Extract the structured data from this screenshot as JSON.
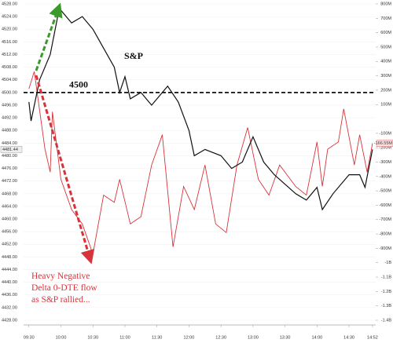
{
  "chart_data": {
    "type": "line",
    "xlim": [
      565,
      895
    ],
    "xticks": [
      {
        "value": 570,
        "label": "09:30"
      },
      {
        "value": 600,
        "label": "10:00"
      },
      {
        "value": 630,
        "label": "10:30"
      },
      {
        "value": 660,
        "label": "11:00"
      },
      {
        "value": 690,
        "label": "11:30"
      },
      {
        "value": 720,
        "label": "12:00"
      },
      {
        "value": 750,
        "label": "12:30"
      },
      {
        "value": 780,
        "label": "13:00"
      },
      {
        "value": 810,
        "label": "13:30"
      },
      {
        "value": 840,
        "label": "14:00"
      },
      {
        "value": 870,
        "label": "14:30"
      },
      {
        "value": 892,
        "label": "14:52"
      }
    ],
    "ylim": [
      4428,
      4528
    ],
    "yticks": [
      {
        "value": 4428,
        "label": "4428.00"
      },
      {
        "value": 4432,
        "label": "4432.00"
      },
      {
        "value": 4436,
        "label": "4436.00"
      },
      {
        "value": 4440,
        "label": "4440.00"
      },
      {
        "value": 4444,
        "label": "4444.00"
      },
      {
        "value": 4448,
        "label": "4448.00"
      },
      {
        "value": 4452,
        "label": "4452.00"
      },
      {
        "value": 4456,
        "label": "4456.00"
      },
      {
        "value": 4460,
        "label": "4460.00"
      },
      {
        "value": 4464,
        "label": "4464.00"
      },
      {
        "value": 4468,
        "label": "4468.00"
      },
      {
        "value": 4472,
        "label": "4472.00"
      },
      {
        "value": 4476,
        "label": "4476.00"
      },
      {
        "value": 4480,
        "label": "4480.00"
      },
      {
        "value": 4484,
        "label": "4484.00"
      },
      {
        "value": 4488,
        "label": "4488.00"
      },
      {
        "value": 4492,
        "label": "4492.00"
      },
      {
        "value": 4496,
        "label": "4496.00"
      },
      {
        "value": 4500,
        "label": "4500.00"
      },
      {
        "value": 4504,
        "label": "4504.00"
      },
      {
        "value": 4508,
        "label": "4508.00"
      },
      {
        "value": 4512,
        "label": "4512.00"
      },
      {
        "value": 4516,
        "label": "4516.00"
      },
      {
        "value": 4520,
        "label": "4520.00"
      },
      {
        "value": 4524,
        "label": "4524.00"
      },
      {
        "value": 4528,
        "label": "4528.00"
      }
    ],
    "y2lim": [
      -1400000000,
      800000000
    ],
    "y2ticks": [
      {
        "value": 800000000,
        "label": "800M"
      },
      {
        "value": 700000000,
        "label": "700M"
      },
      {
        "value": 600000000,
        "label": "600M"
      },
      {
        "value": 500000000,
        "label": "500M"
      },
      {
        "value": 400000000,
        "label": "400M"
      },
      {
        "value": 300000000,
        "label": "300M"
      },
      {
        "value": 200000000,
        "label": "200M"
      },
      {
        "value": 100000000,
        "label": "100M"
      },
      {
        "value": -100000000,
        "label": "-100M"
      },
      {
        "value": -200000000,
        "label": "-200M"
      },
      {
        "value": -300000000,
        "label": "-300M"
      },
      {
        "value": -400000000,
        "label": "-400M"
      },
      {
        "value": -500000000,
        "label": "-500M"
      },
      {
        "value": -600000000,
        "label": "-600M"
      },
      {
        "value": -700000000,
        "label": "-700M"
      },
      {
        "value": -800000000,
        "label": "-800M"
      },
      {
        "value": -900000000,
        "label": "-900M"
      },
      {
        "value": -1000000000,
        "label": "-1B"
      },
      {
        "value": -1100000000,
        "label": "-1.1B"
      },
      {
        "value": -1200000000,
        "label": "-1.2B"
      },
      {
        "value": -1300000000,
        "label": "-1.3B"
      },
      {
        "value": -1400000000,
        "label": "-1.4B"
      }
    ],
    "series": [
      {
        "color": "#d8333a",
        "axis": "y2",
        "x": [
          570,
          575,
          585,
          590,
          592,
          600,
          610,
          620,
          630,
          640,
          650,
          655,
          665,
          675,
          685,
          695,
          705,
          715,
          725,
          735,
          745,
          755,
          765,
          775,
          785,
          795,
          805,
          820,
          830,
          840,
          845,
          850,
          860,
          865,
          875,
          880,
          887,
          892
        ],
        "values": [
          210000000,
          330000000,
          -210000000,
          -370000000,
          50000000,
          -420000000,
          -630000000,
          -730000000,
          -940000000,
          -530000000,
          -580000000,
          -420000000,
          -730000000,
          -680000000,
          -320000000,
          -110000000,
          -890000000,
          -470000000,
          -630000000,
          -320000000,
          -730000000,
          -790000000,
          -320000000,
          -60000000,
          -420000000,
          -530000000,
          -320000000,
          -470000000,
          -530000000,
          -160000000,
          -470000000,
          -210000000,
          -160000000,
          70000000,
          -320000000,
          -110000000,
          -370000000,
          -170000000
        ]
      },
      {
        "color": "#111111",
        "x": [
          570,
          572,
          580,
          590,
          597,
          600,
          610,
          620,
          630,
          640,
          650,
          655,
          660,
          665,
          675,
          685,
          700,
          710,
          720,
          725,
          735,
          750,
          760,
          770,
          780,
          790,
          800,
          820,
          830,
          840,
          845,
          855,
          870,
          880,
          885,
          892
        ],
        "values": [
          4497,
          4491,
          4504,
          4512,
          4524,
          4526,
          4522,
          4524,
          4520,
          4514,
          4508,
          4500,
          4505,
          4498,
          4500,
          4496,
          4502,
          4497,
          4488,
          4480,
          4482,
          4480,
          4476,
          4478,
          4486,
          4478,
          4474,
          4468,
          4466,
          4470,
          4463,
          4468,
          4474,
          4474,
          4470,
          4482
        ]
      }
    ],
    "last_label": "4481.44",
    "last_label_y2": "-166.55M",
    "hline": {
      "value": 4500,
      "label": "4500"
    },
    "series_label": "S&P",
    "annotation_lines": [
      "Heavy Negative",
      "Delta 0-DTE flow",
      "as S&P rallied..."
    ]
  }
}
